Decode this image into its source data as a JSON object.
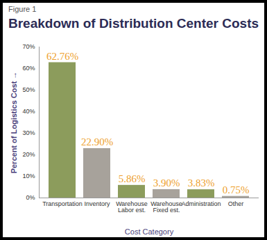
{
  "chart_data": {
    "type": "bar",
    "title": "Breakdown of Distribution Center Costs",
    "annotations": [
      "Figure 1"
    ],
    "x_label": "Cost Category",
    "y_label": "Percent of Logistics Cost",
    "categories": [
      "Transportation",
      "Inventory",
      "Warehouse Labor est.",
      "Warehouse Fixed est.",
      "Administration",
      "Other"
    ],
    "values": [
      62.76,
      22.9,
      5.86,
      3.9,
      3.83,
      0.75
    ],
    "value_labels": [
      "62.76%",
      "22.90%",
      "5.86%",
      "3.90%",
      "3.83%",
      "0.75%"
    ],
    "colors": [
      "#8c9c5c",
      "#a7a29b",
      "#8c9c5c",
      "#a7a29b",
      "#8c9c5c",
      "#a7a29b"
    ],
    "ylim": [
      0,
      70
    ],
    "yticks": [
      {
        "value": 0,
        "label": "0%"
      },
      {
        "value": 10,
        "label": "10%"
      },
      {
        "value": 20,
        "label": "20%"
      },
      {
        "value": 30,
        "label": "30%"
      },
      {
        "value": 40,
        "label": "40%"
      },
      {
        "value": 50,
        "label": "50%"
      },
      {
        "value": 60,
        "label": "60%"
      },
      {
        "value": 70,
        "label": "70%"
      }
    ],
    "grid": false,
    "data_labels": true
  }
}
